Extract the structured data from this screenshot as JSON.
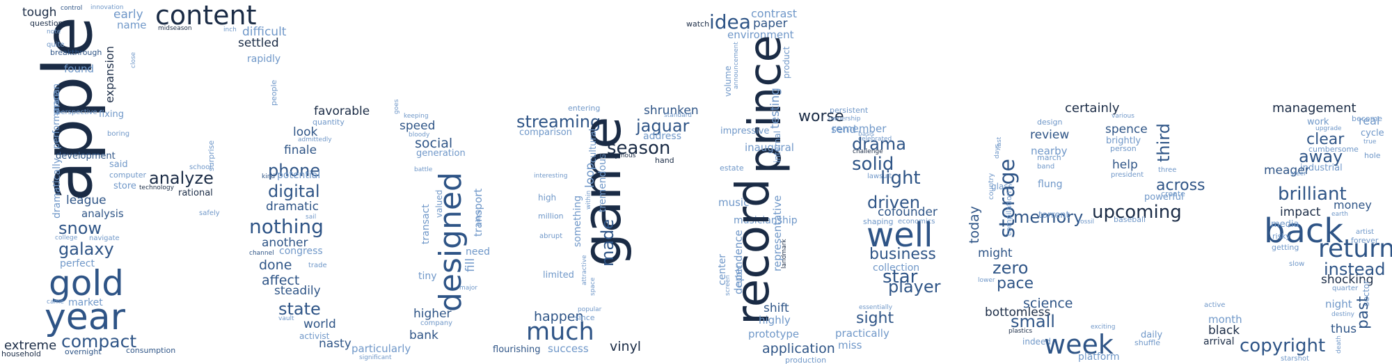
{
  "colors": {
    "background": "#ffffff",
    "palette": [
      "#1a2b45",
      "#2e5486",
      "#3e6aa3",
      "#6f97c8",
      "#0f0f0f"
    ]
  },
  "words": [
    "apple",
    "gold",
    "year",
    "compact",
    "extreme",
    "household",
    "galaxy",
    "snow",
    "league",
    "analysis",
    "dramatically",
    "performance",
    "macan",
    "development",
    "said",
    "computer",
    "store",
    "technology",
    "analyze",
    "rational",
    "school",
    "surprise",
    "safely",
    "found",
    "expansion",
    "fixing",
    "boring",
    "perspective",
    "breakthrough",
    "close",
    "quite",
    "note",
    "question",
    "tough",
    "control",
    "innovation",
    "early",
    "name",
    "midseason",
    "inch",
    "content",
    "difficult",
    "settled",
    "rapidly",
    "people",
    "market",
    "came",
    "perfect",
    "college",
    "navigate",
    "overnight",
    "consumption",
    "favorable",
    "quantity",
    "look",
    "admittedly",
    "finale",
    "phone",
    "potential",
    "kind",
    "digital",
    "dramatic",
    "nothing",
    "sail",
    "another",
    "channel",
    "congress",
    "done",
    "trade",
    "affect",
    "steadily",
    "state",
    "vault",
    "world",
    "activist",
    "nasty",
    "particularly",
    "significant",
    "goes",
    "keeping",
    "speed",
    "bloody",
    "social",
    "generation",
    "battle",
    "transact",
    "valued",
    "designed",
    "fill",
    "transport",
    "piece",
    "need",
    "tiny",
    "major",
    "higher",
    "company",
    "bank",
    "streaming",
    "comparison",
    "interesting",
    "high",
    "million",
    "abrupt",
    "game",
    "something",
    "cultural",
    "loop",
    "tremendous",
    "within",
    "made",
    "limited",
    "attractive",
    "space",
    "happen",
    "since",
    "popular",
    "much",
    "flourishing",
    "success",
    "vinyl",
    "entering",
    "shrunken",
    "standard",
    "jaguar",
    "address",
    "season",
    "anonymous",
    "hand",
    "watch",
    "idea",
    "contrast",
    "paper",
    "environment",
    "prince",
    "volume",
    "announcement",
    "product",
    "testing",
    "impressive",
    "inaugural",
    "estate",
    "internal",
    "music",
    "musicianship",
    "record",
    "center",
    "screen",
    "cubic",
    "dependence",
    "representative",
    "landmark",
    "shift",
    "highly",
    "prototype",
    "application",
    "production",
    "persistent",
    "worse",
    "ownership",
    "send",
    "remember",
    "basis",
    "celebrated",
    "challenge",
    "drama",
    "solid",
    "lawsuit",
    "light",
    "driven",
    "cofounder",
    "shaping",
    "economics",
    "well",
    "business",
    "collection",
    "star",
    "player",
    "essentially",
    "sight",
    "practically",
    "miss",
    "certainly",
    "design",
    "various",
    "spence",
    "brightly",
    "person",
    "review",
    "last",
    "days",
    "nearby",
    "march",
    "band",
    "flung",
    "glass",
    "storage",
    "third",
    "three",
    "help",
    "president",
    "across",
    "powerful",
    "create",
    "memory",
    "torrent",
    "fossil",
    "upcoming",
    "baseball",
    "country",
    "today",
    "might",
    "compilation",
    "zero",
    "pace",
    "lower",
    "science",
    "bottomless",
    "small",
    "plastics",
    "indeed",
    "week",
    "exciting",
    "daily",
    "shuffle",
    "platform",
    "management",
    "become",
    "real",
    "work",
    "upgrade",
    "cycle",
    "true",
    "clear",
    "cumbersome",
    "hole",
    "away",
    "industrial",
    "meager",
    "steer",
    "brilliant",
    "money",
    "impact",
    "earth",
    "back",
    "media",
    "risky",
    "getting",
    "artist",
    "forever",
    "return",
    "slow",
    "instead",
    "shocking",
    "quarter",
    "sector",
    "night",
    "past",
    "destiny",
    "active",
    "month",
    "black",
    "thus",
    "arrival",
    "copyright",
    "death",
    "starshot"
  ]
}
